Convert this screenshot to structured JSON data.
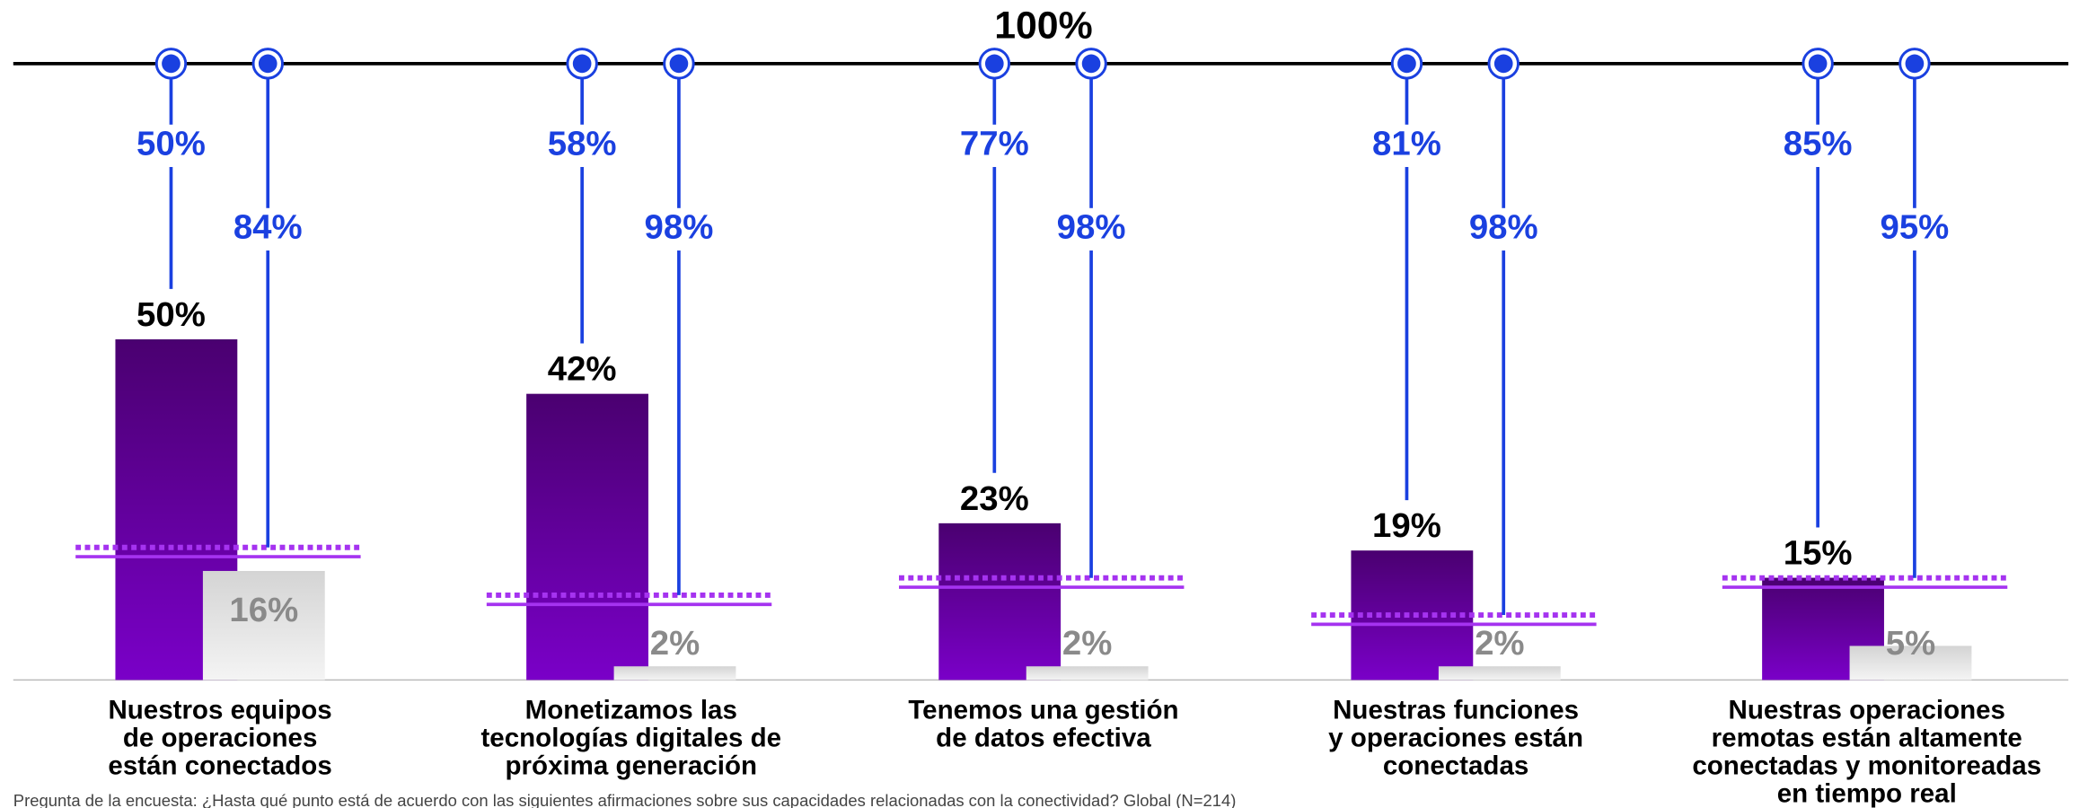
{
  "chart_data": {
    "type": "bar",
    "top_line": {
      "value": 100,
      "label": "100%"
    },
    "categories": [
      [
        "Nuestros equipos",
        "de operaciones",
        "están conectados"
      ],
      [
        "Monetizamos las",
        "tecnologías digitales de",
        "próxima generación"
      ],
      [
        "Tenemos una gestión",
        "de datos efectiva"
      ],
      [
        "Nuestras funciones",
        "y operaciones están",
        "conectadas"
      ],
      [
        "Nuestras operaciones",
        "remotas están altamente",
        "conectadas y monitoreadas",
        "en tiempo real"
      ]
    ],
    "series": [
      {
        "color": "#6a00b0",
        "values": [
          50,
          42,
          23,
          19,
          15
        ],
        "value_labels": [
          "50%",
          "42%",
          "23%",
          "19%",
          "15%"
        ],
        "remaining_values": [
          50,
          58,
          77,
          81,
          85
        ],
        "remaining_labels": [
          "50%",
          "58%",
          "77%",
          "81%",
          "85%"
        ]
      },
      {
        "color": "#dcdcdc",
        "values": [
          16,
          2,
          2,
          2,
          5
        ],
        "value_labels": [
          "16%",
          "2%",
          "2%",
          "2%",
          "5%"
        ],
        "remaining_values": [
          84,
          98,
          98,
          98,
          95
        ],
        "remaining_labels": [
          "84%",
          "98%",
          "98%",
          "98%",
          "95%"
        ]
      }
    ],
    "footnote": "Pregunta de la encuesta: ¿Hasta qué punto está de acuerdo con las siguientes afirmaciones sobre sus capacidades relacionadas con la conectividad? Global (N=214)"
  }
}
